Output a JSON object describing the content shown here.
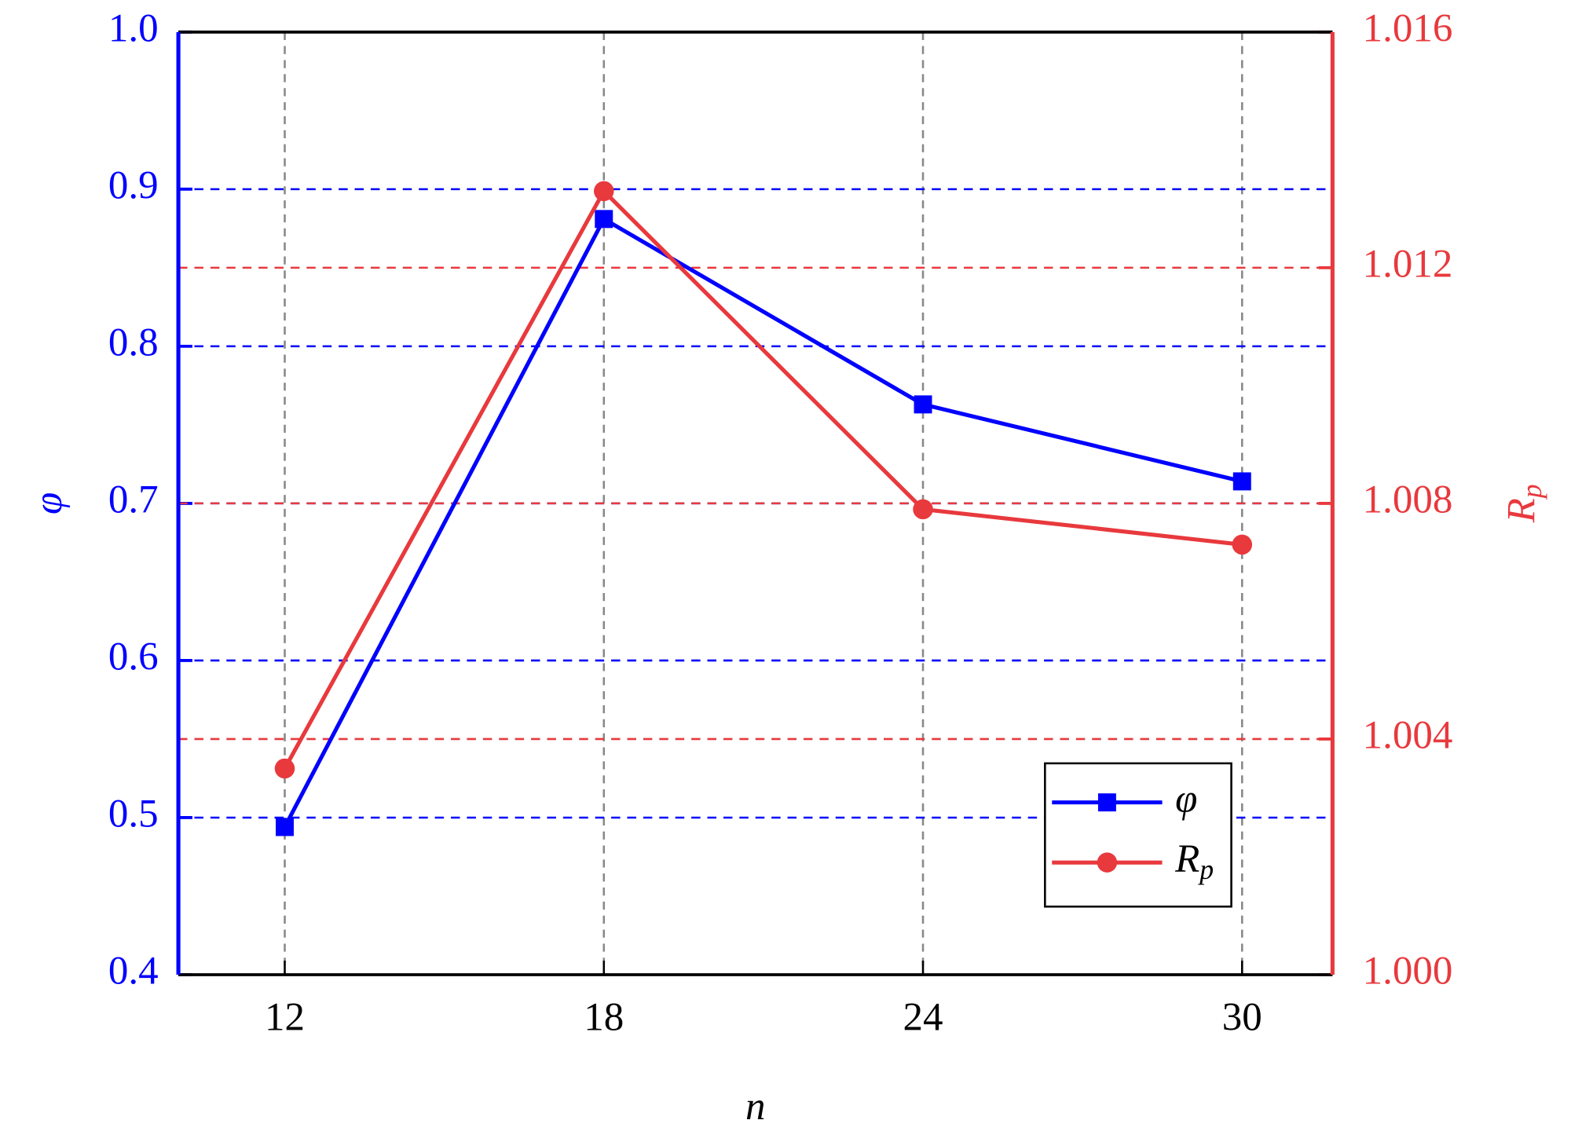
{
  "chart_data": {
    "type": "line",
    "x": [
      12,
      18,
      24,
      30
    ],
    "xlim": [
      10,
      31.7
    ],
    "xticks": [
      12,
      18,
      24,
      30
    ],
    "ylim": [
      0.4,
      1.0
    ],
    "yticks": [
      0.4,
      0.5,
      0.6,
      0.7,
      0.8,
      0.9,
      {
        "value": 1.0,
        "label": "1.0"
      }
    ],
    "y2lim": [
      1.0,
      1.016
    ],
    "y2ticks": [
      {
        "value": 1.0,
        "label": "1.000"
      },
      {
        "value": 1.004,
        "label": "1.004"
      },
      {
        "value": 1.008,
        "label": "1.008"
      },
      {
        "value": 1.012,
        "label": "1.012"
      },
      {
        "value": 1.016,
        "label": "1.016"
      }
    ],
    "xlabel": "n",
    "ylabel": "φ",
    "y2label": "Rp",
    "grid": true,
    "legend": "lower right",
    "series": [
      {
        "name": "φ",
        "color": "#0000ff",
        "marker": "square",
        "values": [
          0.494,
          0.881,
          0.763,
          0.714
        ]
      },
      {
        "name": "Rp",
        "color": "#e8393d",
        "marker": "circle",
        "axis": "y2",
        "values": [
          1.0035,
          1.0133,
          1.0079,
          1.0073
        ]
      }
    ]
  }
}
